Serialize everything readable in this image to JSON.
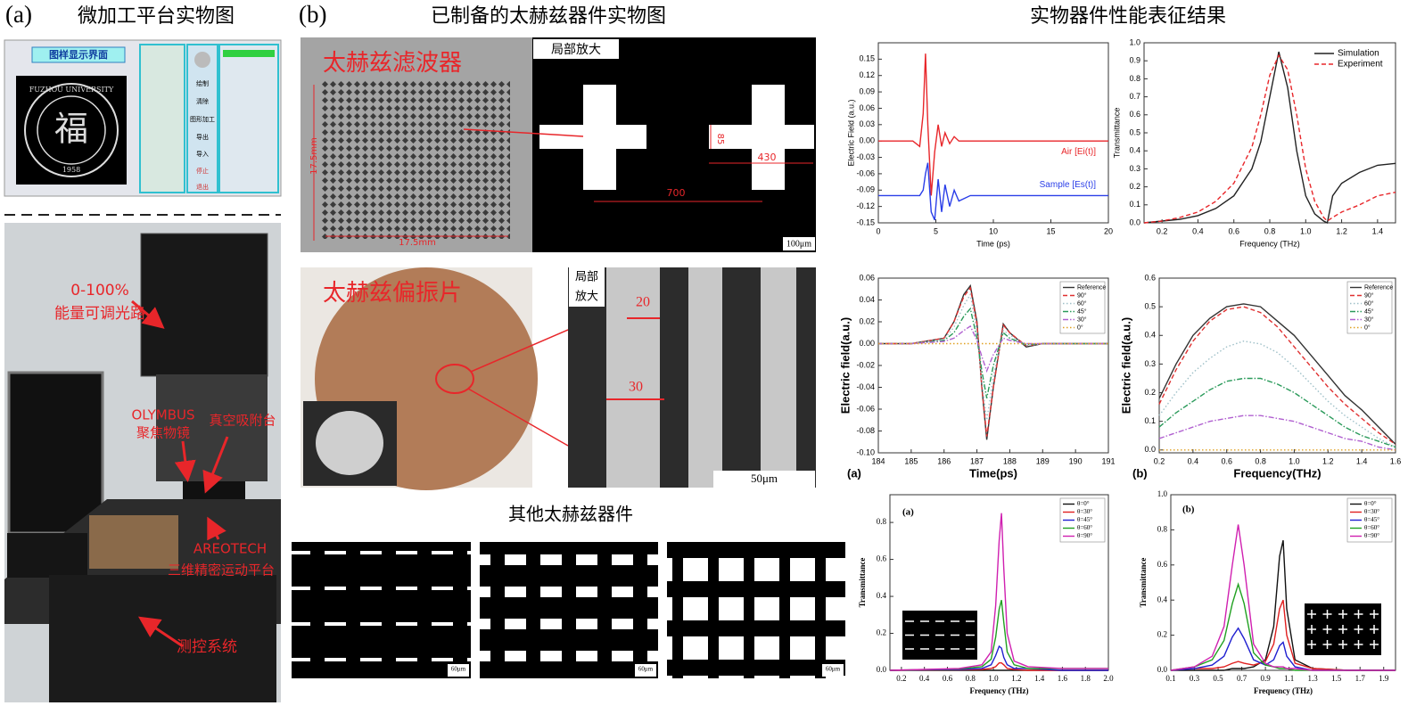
{
  "panel_a": {
    "label": "(a)",
    "title": "微加工平台实物图",
    "software": {
      "title": "图样显示界面",
      "logo_text": "FUZHOU UNIVERSITY",
      "logo_char": "福",
      "logo_year": "1958",
      "buttons": [
        "绘制",
        "清除",
        "图形加工",
        "导出",
        "导入",
        "停止",
        "退出"
      ]
    },
    "photo_labels": [
      "0-100%",
      "能量可调光路",
      "OLYMBUS",
      "聚焦物镜",
      "真空吸附台",
      "AREOTECH",
      "三维精密运动平台",
      "测控系统"
    ]
  },
  "panel_b": {
    "label": "(b)",
    "title": "已制备的太赫兹器件实物图",
    "filter": {
      "title": "太赫兹滤波器",
      "zoom_label": "局部放大",
      "dimensions": [
        "17.5mm",
        "17.5mm",
        "85",
        "430",
        "700"
      ],
      "scale_bar": "100μm"
    },
    "polarizer": {
      "title": "太赫兹偏振片",
      "zoom_label": [
        "局部",
        "放大"
      ],
      "dimensions": [
        "20",
        "30"
      ],
      "scale_bar": "50μm"
    },
    "others": {
      "title": "其他太赫兹器件",
      "scale_bars": [
        "60μm",
        "60μm",
        "60μm"
      ]
    }
  },
  "panel_c": {
    "title": "实物器件性能表征结果"
  },
  "chart_data": [
    {
      "type": "line",
      "xlabel": "Time (ps)",
      "ylabel": "Electric Field (a.u.)",
      "x": [
        0,
        2,
        3,
        3.6,
        3.9,
        4.1,
        4.3,
        4.6,
        4.9,
        5.2,
        5.5,
        5.8,
        6.2,
        6.6,
        7,
        8,
        10,
        15,
        20
      ],
      "xlim": [
        0,
        20
      ],
      "xticks": [
        0,
        5,
        10,
        15,
        20
      ],
      "ylim": [
        -0.15,
        0.18
      ],
      "yticks": [
        0.15,
        0.12,
        0.09,
        0.06,
        0.03,
        {
          "value": 0,
          "label": "0.00"
        },
        -0.03,
        -0.06,
        -0.09,
        -0.12,
        -0.15
      ],
      "legend": "inline",
      "series": [
        {
          "name": "Air [Ei(t)]",
          "color": "#e8262a",
          "style": "solid",
          "values": [
            0,
            0,
            0,
            -0.01,
            0.05,
            0.16,
            0.03,
            -0.1,
            -0.02,
            0.03,
            -0.01,
            0.015,
            -0.005,
            0.008,
            0,
            0,
            0,
            0,
            0
          ]
        },
        {
          "name": "Sample [Es(t)]",
          "color": "#2a3ee8",
          "style": "solid",
          "values": [
            -0.1,
            -0.1,
            -0.1,
            -0.1,
            -0.09,
            -0.06,
            -0.04,
            -0.13,
            -0.145,
            -0.07,
            -0.13,
            -0.08,
            -0.12,
            -0.09,
            -0.11,
            -0.1,
            -0.1,
            -0.1,
            -0.1
          ]
        }
      ]
    },
    {
      "type": "line",
      "xlabel": "Frequency (THz)",
      "ylabel": "Transmittance",
      "x": [
        0.1,
        0.2,
        0.3,
        0.4,
        0.5,
        0.6,
        0.7,
        0.75,
        0.8,
        0.85,
        0.9,
        0.95,
        1.0,
        1.05,
        1.1,
        1.12,
        1.15,
        1.2,
        1.3,
        1.4,
        1.5
      ],
      "xlim": [
        0.1,
        1.5
      ],
      "xticks": [
        0.2,
        0.4,
        0.6,
        0.8,
        {
          "value": 1,
          "label": "1.0"
        },
        1.2,
        1.4
      ],
      "ylim": [
        0,
        1
      ],
      "yticks": [
        {
          "value": 0,
          "label": "0.0"
        },
        0.1,
        0.2,
        0.3,
        0.4,
        0.5,
        0.6,
        0.7,
        0.8,
        0.9,
        {
          "value": 1,
          "label": "1.0"
        }
      ],
      "legend": "upper right",
      "series": [
        {
          "name": "Simulation",
          "color": "#222222",
          "style": "solid",
          "values": [
            0,
            0.01,
            0.02,
            0.04,
            0.08,
            0.15,
            0.3,
            0.45,
            0.7,
            0.95,
            0.75,
            0.4,
            0.15,
            0.05,
            0.01,
            0,
            0.15,
            0.22,
            0.28,
            0.32,
            0.33
          ]
        },
        {
          "name": "Experiment",
          "color": "#e8262a",
          "style": "dashed",
          "values": [
            0,
            0.01,
            0.03,
            0.06,
            0.12,
            0.22,
            0.42,
            0.6,
            0.82,
            0.93,
            0.85,
            0.6,
            0.3,
            0.12,
            0.03,
            0.01,
            0.03,
            0.06,
            0.1,
            0.15,
            0.17
          ]
        }
      ]
    },
    {
      "type": "line",
      "panel_label": "(a)",
      "xlabel": "Time(ps)",
      "ylabel": "Electric field(a.u.)",
      "x": [
        184,
        185,
        186,
        186.3,
        186.6,
        186.8,
        187,
        187.15,
        187.3,
        187.5,
        187.8,
        188,
        188.5,
        189,
        190,
        191
      ],
      "xlim": [
        184,
        191
      ],
      "xticks": [
        184,
        185,
        186,
        187,
        188,
        189,
        190,
        191
      ],
      "ylim": [
        -0.1,
        0.06
      ],
      "yticks": [
        0.06,
        0.04,
        0.02,
        {
          "value": 0,
          "label": "0.00"
        },
        -0.02,
        -0.04,
        -0.06,
        -0.08,
        {
          "value": -0.1,
          "label": "-0.10"
        }
      ],
      "legend": "upper right",
      "series": [
        {
          "name": "Reference",
          "color": "#333333",
          "style": "solid",
          "values": [
            0,
            0,
            0.005,
            0.02,
            0.045,
            0.053,
            0.02,
            -0.04,
            -0.088,
            -0.04,
            0.018,
            0.01,
            -0.003,
            0,
            0,
            0
          ]
        },
        {
          "name": "90°",
          "color": "#e03030",
          "style": "dashed",
          "values": [
            0,
            0,
            0.005,
            0.02,
            0.043,
            0.051,
            0.018,
            -0.04,
            -0.085,
            -0.04,
            0.017,
            0.01,
            -0.002,
            0,
            0,
            0
          ]
        },
        {
          "name": "60°",
          "color": "#9fc0c8",
          "style": "dotted",
          "values": [
            0,
            0,
            0.004,
            0.015,
            0.035,
            0.045,
            0.01,
            -0.035,
            -0.07,
            -0.03,
            0.012,
            0.008,
            -0.002,
            0,
            0,
            0
          ]
        },
        {
          "name": "45°",
          "color": "#2a9a5a",
          "style": "dashdot",
          "values": [
            0,
            0,
            0.003,
            0.01,
            0.025,
            0.032,
            0.005,
            -0.025,
            -0.05,
            -0.02,
            0.01,
            0.005,
            -0.001,
            0,
            0,
            0
          ]
        },
        {
          "name": "30°",
          "color": "#b060d0",
          "style": "dashdot",
          "values": [
            0,
            0,
            0.002,
            0.005,
            0.012,
            0.016,
            0.003,
            -0.012,
            -0.025,
            -0.01,
            0.005,
            0.003,
            0,
            0,
            0,
            0
          ]
        },
        {
          "name": "0°",
          "color": "#e0a020",
          "style": "dotted",
          "values": [
            0,
            0,
            0,
            0,
            0,
            0,
            0,
            0,
            0,
            0,
            0,
            0,
            0,
            0,
            0,
            0
          ]
        }
      ]
    },
    {
      "type": "line",
      "panel_label": "(b)",
      "xlabel": "Frequency(THz)",
      "ylabel": "Electric field(a.u.)",
      "x": [
        0.2,
        0.3,
        0.4,
        0.5,
        0.6,
        0.7,
        0.8,
        0.9,
        1.0,
        1.1,
        1.2,
        1.3,
        1.4,
        1.5,
        1.6
      ],
      "xlim": [
        0.2,
        1.6
      ],
      "xticks": [
        0.2,
        0.4,
        0.6,
        0.8,
        {
          "value": 1,
          "label": "1.0"
        },
        1.2,
        1.4,
        1.6
      ],
      "ylim": [
        -0.01,
        0.6
      ],
      "yticks": [
        {
          "value": 0,
          "label": "0.0"
        },
        0.1,
        0.2,
        0.3,
        0.4,
        0.5,
        0.6
      ],
      "legend": "upper right",
      "series": [
        {
          "name": "Reference",
          "color": "#333333",
          "style": "solid",
          "values": [
            0.18,
            0.3,
            0.4,
            0.46,
            0.5,
            0.51,
            0.5,
            0.45,
            0.4,
            0.33,
            0.26,
            0.19,
            0.14,
            0.08,
            0.02
          ]
        },
        {
          "name": "90°",
          "color": "#e03030",
          "style": "dashed",
          "values": [
            0.16,
            0.28,
            0.38,
            0.45,
            0.49,
            0.5,
            0.48,
            0.43,
            0.36,
            0.29,
            0.22,
            0.16,
            0.11,
            0.06,
            0.02
          ]
        },
        {
          "name": "60°",
          "color": "#9fc0c8",
          "style": "dotted",
          "values": [
            0.12,
            0.2,
            0.27,
            0.32,
            0.36,
            0.38,
            0.37,
            0.34,
            0.29,
            0.23,
            0.17,
            0.12,
            0.08,
            0.04,
            0.01
          ]
        },
        {
          "name": "45°",
          "color": "#2a9a5a",
          "style": "dashdot",
          "values": [
            0.08,
            0.13,
            0.17,
            0.21,
            0.24,
            0.25,
            0.25,
            0.23,
            0.2,
            0.16,
            0.12,
            0.08,
            0.05,
            0.03,
            0.01
          ]
        },
        {
          "name": "30°",
          "color": "#b060d0",
          "style": "dashdot",
          "values": [
            0.04,
            0.06,
            0.08,
            0.1,
            0.11,
            0.12,
            0.12,
            0.11,
            0.1,
            0.08,
            0.06,
            0.04,
            0.03,
            0.01,
            0
          ]
        },
        {
          "name": "0°",
          "color": "#e0a020",
          "style": "dotted",
          "values": [
            0,
            0,
            0,
            0,
            0,
            0,
            0,
            0,
            0,
            0,
            0,
            0,
            0,
            0,
            0
          ]
        }
      ]
    },
    {
      "type": "line",
      "panel_label": "(a)",
      "xlabel": "Frequency (THz)",
      "ylabel": "Transmittance",
      "x": [
        0.1,
        0.4,
        0.7,
        0.9,
        0.98,
        1.02,
        1.05,
        1.07,
        1.09,
        1.12,
        1.18,
        1.3,
        1.6,
        2.0
      ],
      "xlim": [
        0.1,
        2.0
      ],
      "xticks": [
        0.2,
        0.4,
        0.6,
        0.8,
        {
          "value": 1,
          "label": "1.0"
        },
        1.2,
        1.4,
        1.6,
        1.8,
        {
          "value": 2,
          "label": "2.0"
        }
      ],
      "ylim": [
        0,
        0.95
      ],
      "yticks": [
        {
          "value": 0,
          "label": "0.0"
        },
        0.2,
        0.4,
        0.6,
        0.8
      ],
      "legend": "upper right",
      "series": [
        {
          "name": "θ=0°",
          "color": "#111111",
          "style": "solid",
          "values": [
            0,
            0,
            0,
            0,
            0,
            0,
            0,
            0,
            0,
            0,
            0,
            0,
            0,
            0
          ]
        },
        {
          "name": "θ=30°",
          "color": "#e02020",
          "style": "solid",
          "values": [
            0,
            0.002,
            0.003,
            0.005,
            0.01,
            0.02,
            0.04,
            0.04,
            0.03,
            0.01,
            0.005,
            0,
            0,
            0
          ]
        },
        {
          "name": "θ=45°",
          "color": "#2020d0",
          "style": "solid",
          "values": [
            0,
            0.003,
            0.005,
            0.01,
            0.03,
            0.08,
            0.13,
            0.12,
            0.07,
            0.03,
            0.01,
            0.01,
            0,
            0
          ]
        },
        {
          "name": "θ=60°",
          "color": "#20a020",
          "style": "solid",
          "values": [
            0,
            0.004,
            0.008,
            0.02,
            0.06,
            0.18,
            0.33,
            0.38,
            0.26,
            0.1,
            0.03,
            0.01,
            0.01,
            0.01
          ]
        },
        {
          "name": "θ=90°",
          "color": "#d020b0",
          "style": "solid",
          "values": [
            0,
            0.005,
            0.01,
            0.03,
            0.1,
            0.35,
            0.7,
            0.85,
            0.55,
            0.2,
            0.05,
            0.02,
            0.01,
            0.01
          ]
        }
      ]
    },
    {
      "type": "line",
      "panel_label": "(b)",
      "xlabel": "Frequency (THz)",
      "ylabel": "Transmittance",
      "x": [
        0.1,
        0.3,
        0.45,
        0.55,
        0.62,
        0.67,
        0.72,
        0.8,
        0.9,
        0.97,
        1.02,
        1.05,
        1.08,
        1.15,
        1.3,
        1.6,
        2.0
      ],
      "xlim": [
        0.1,
        2.0
      ],
      "xticks": [
        0.1,
        0.3,
        0.5,
        0.7,
        0.9,
        1.1,
        1.3,
        1.5,
        1.7,
        1.9
      ],
      "ylim": [
        0,
        1
      ],
      "yticks": [
        {
          "value": 0,
          "label": "0.0"
        },
        0.2,
        0.4,
        0.6,
        0.8,
        {
          "value": 1,
          "label": "1.0"
        }
      ],
      "legend": "upper right",
      "series": [
        {
          "name": "θ=0°",
          "color": "#111111",
          "style": "solid",
          "values": [
            0,
            0,
            0,
            0,
            0.01,
            0.01,
            0.01,
            0.02,
            0.06,
            0.25,
            0.65,
            0.74,
            0.35,
            0.06,
            0.01,
            0,
            0
          ]
        },
        {
          "name": "θ=30°",
          "color": "#e02020",
          "style": "solid",
          "values": [
            0,
            0.01,
            0.01,
            0.02,
            0.04,
            0.05,
            0.04,
            0.03,
            0.05,
            0.15,
            0.35,
            0.4,
            0.2,
            0.04,
            0.01,
            0,
            0
          ]
        },
        {
          "name": "θ=45°",
          "color": "#2020d0",
          "style": "solid",
          "values": [
            0,
            0.01,
            0.03,
            0.08,
            0.19,
            0.24,
            0.18,
            0.06,
            0.03,
            0.06,
            0.14,
            0.16,
            0.08,
            0.02,
            0,
            0,
            0
          ]
        },
        {
          "name": "θ=60°",
          "color": "#20a020",
          "style": "solid",
          "values": [
            0,
            0.02,
            0.06,
            0.17,
            0.38,
            0.49,
            0.38,
            0.1,
            0.03,
            0.02,
            0.01,
            0.01,
            0.01,
            0,
            0,
            0,
            0
          ]
        },
        {
          "name": "θ=90°",
          "color": "#d020b0",
          "style": "solid",
          "values": [
            0,
            0.02,
            0.08,
            0.25,
            0.6,
            0.83,
            0.6,
            0.15,
            0.04,
            0.02,
            0.02,
            0.02,
            0.01,
            0.01,
            0,
            0,
            0
          ]
        }
      ]
    }
  ]
}
